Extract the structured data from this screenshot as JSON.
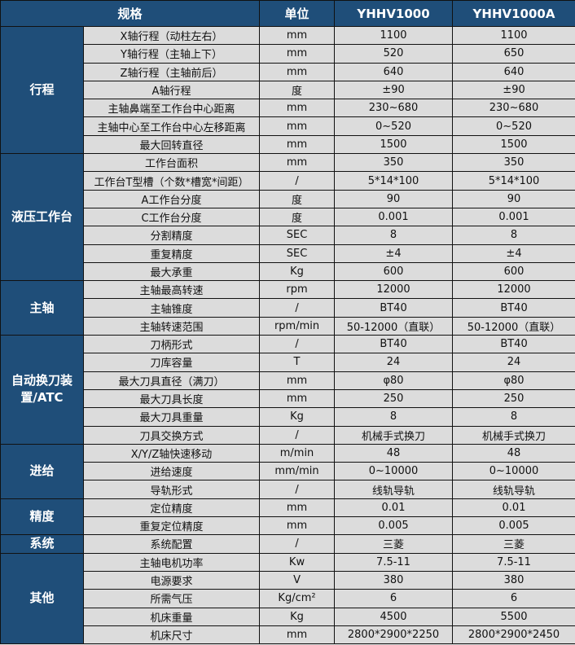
{
  "header": {
    "spec": "规格",
    "unit": "单位",
    "model_a": "YHHV1000",
    "model_b": "YHHV1000A"
  },
  "groups": [
    {
      "name": "行程",
      "rows": [
        [
          "X轴行程（动柱左右）",
          "mm",
          "1100",
          "1100"
        ],
        [
          "Y轴行程（主轴上下）",
          "mm",
          "520",
          "650"
        ],
        [
          "Z轴行程（主轴前后）",
          "mm",
          "640",
          "640"
        ],
        [
          "A轴行程",
          "度",
          "±90",
          "±90"
        ],
        [
          "主轴鼻端至工作台中心距离",
          "mm",
          "230~680",
          "230~680"
        ],
        [
          "主轴中心至工作台中心左移距离",
          "mm",
          "0~520",
          "0~520"
        ],
        [
          "最大回转直径",
          "mm",
          "1500",
          "1500"
        ]
      ]
    },
    {
      "name": "液压工作台",
      "rows": [
        [
          "工作台面积",
          "mm",
          "350",
          "350"
        ],
        [
          "工作台T型槽（个数*槽宽*间距）",
          "/",
          "5*14*100",
          "5*14*100"
        ],
        [
          "A工作台分度",
          "度",
          "90",
          "90"
        ],
        [
          "C工作台分度",
          "度",
          "0.001",
          "0.001"
        ],
        [
          "分割精度",
          "SEC",
          "8",
          "8"
        ],
        [
          "重复精度",
          "SEC",
          "±4",
          "±4"
        ],
        [
          "最大承重",
          "Kg",
          "600",
          "600"
        ]
      ]
    },
    {
      "name": "主轴",
      "rows": [
        [
          "主轴最高转速",
          "rpm",
          "12000",
          "12000"
        ],
        [
          "主轴锥度",
          "/",
          "BT40",
          "BT40"
        ],
        [
          "主轴转速范围",
          "rpm/min",
          "50-12000（直联）",
          "50-12000（直联）"
        ]
      ]
    },
    {
      "name": "自动换刀装置/ATC",
      "rows": [
        [
          "刀柄形式",
          "/",
          "BT40",
          "BT40"
        ],
        [
          "刀库容量",
          "T",
          "24",
          "24"
        ],
        [
          "最大刀具直径（满刀）",
          "mm",
          "φ80",
          "φ80"
        ],
        [
          "最大刀具长度",
          "mm",
          "250",
          "250"
        ],
        [
          "最大刀具重量",
          "Kg",
          "8",
          "8"
        ],
        [
          "刀具交换方式",
          "/",
          "机械手式换刀",
          "机械手式换刀"
        ]
      ]
    },
    {
      "name": "进给",
      "rows": [
        [
          "X/Y/Z轴快速移动",
          "m/min",
          "48",
          "48"
        ],
        [
          "进给速度",
          "mm/min",
          "0~10000",
          "0~10000"
        ],
        [
          "导轨形式",
          "/",
          "线轨导轨",
          "线轨导轨"
        ]
      ]
    },
    {
      "name": "精度",
      "rows": [
        [
          "定位精度",
          "mm",
          "0.01",
          "0.01"
        ],
        [
          "重复定位精度",
          "mm",
          "0.005",
          "0.005"
        ]
      ]
    },
    {
      "name": "系统",
      "rows": [
        [
          "系统配置",
          "/",
          "三菱",
          "三菱"
        ]
      ]
    },
    {
      "name": "其他",
      "rows": [
        [
          "主轴电机功率",
          "Kw",
          "7.5-11",
          "7.5-11"
        ],
        [
          "电源要求",
          "V",
          "380",
          "380"
        ],
        [
          "所需气压",
          "Kg/cm²",
          "6",
          "6"
        ],
        [
          "机床重量",
          "Kg",
          "4500",
          "5500"
        ],
        [
          "机床尺寸",
          "mm",
          "2800*2900*2250",
          "2800*2900*2450"
        ]
      ]
    }
  ]
}
